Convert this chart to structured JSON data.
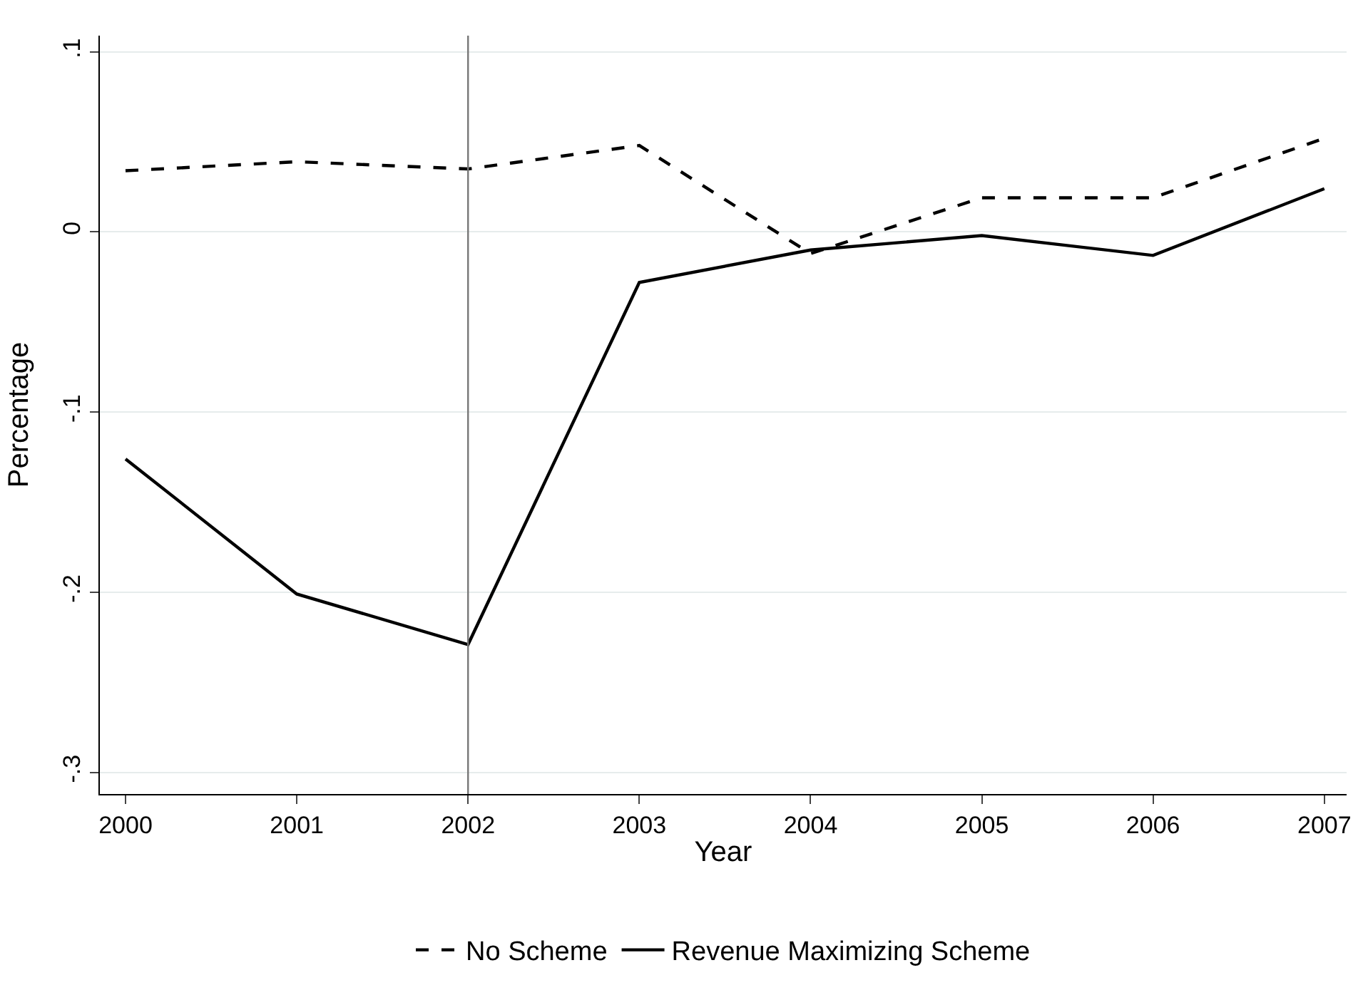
{
  "chart_data": {
    "type": "line",
    "xlabel": "Year",
    "ylabel": "Percentage",
    "x": [
      2000,
      2001,
      2002,
      2003,
      2004,
      2005,
      2006,
      2007
    ],
    "series": [
      {
        "name": "No Scheme",
        "color": "#000000",
        "line_style": "dashed",
        "values": [
          0.034,
          0.039,
          0.035,
          0.048,
          -0.012,
          0.019,
          0.019,
          0.052
        ]
      },
      {
        "name": "Revenue Maximizing Scheme",
        "color": "#000000",
        "line_style": "solid",
        "values": [
          -0.126,
          -0.201,
          -0.229,
          -0.028,
          -0.01,
          -0.002,
          -0.013,
          0.024
        ]
      }
    ],
    "xlim": [
      1999.85,
      2007.13
    ],
    "xticks": [
      2000,
      2001,
      2002,
      2003,
      2004,
      2005,
      2006,
      2007
    ],
    "ylim": [
      -0.312,
      0.109
    ],
    "yticks": [
      {
        "value": -0.3,
        "label": "-.3"
      },
      {
        "value": -0.2,
        "label": "-.2"
      },
      {
        "value": -0.1,
        "label": "-.1"
      },
      {
        "value": 0,
        "label": "0"
      },
      {
        "value": 0.1,
        "label": ".1"
      }
    ],
    "ref_lines": [
      {
        "axis": "x",
        "value": 2002,
        "label": null,
        "color": "#777777"
      }
    ],
    "grid": "y",
    "legend": "bottom",
    "marker": "none"
  }
}
